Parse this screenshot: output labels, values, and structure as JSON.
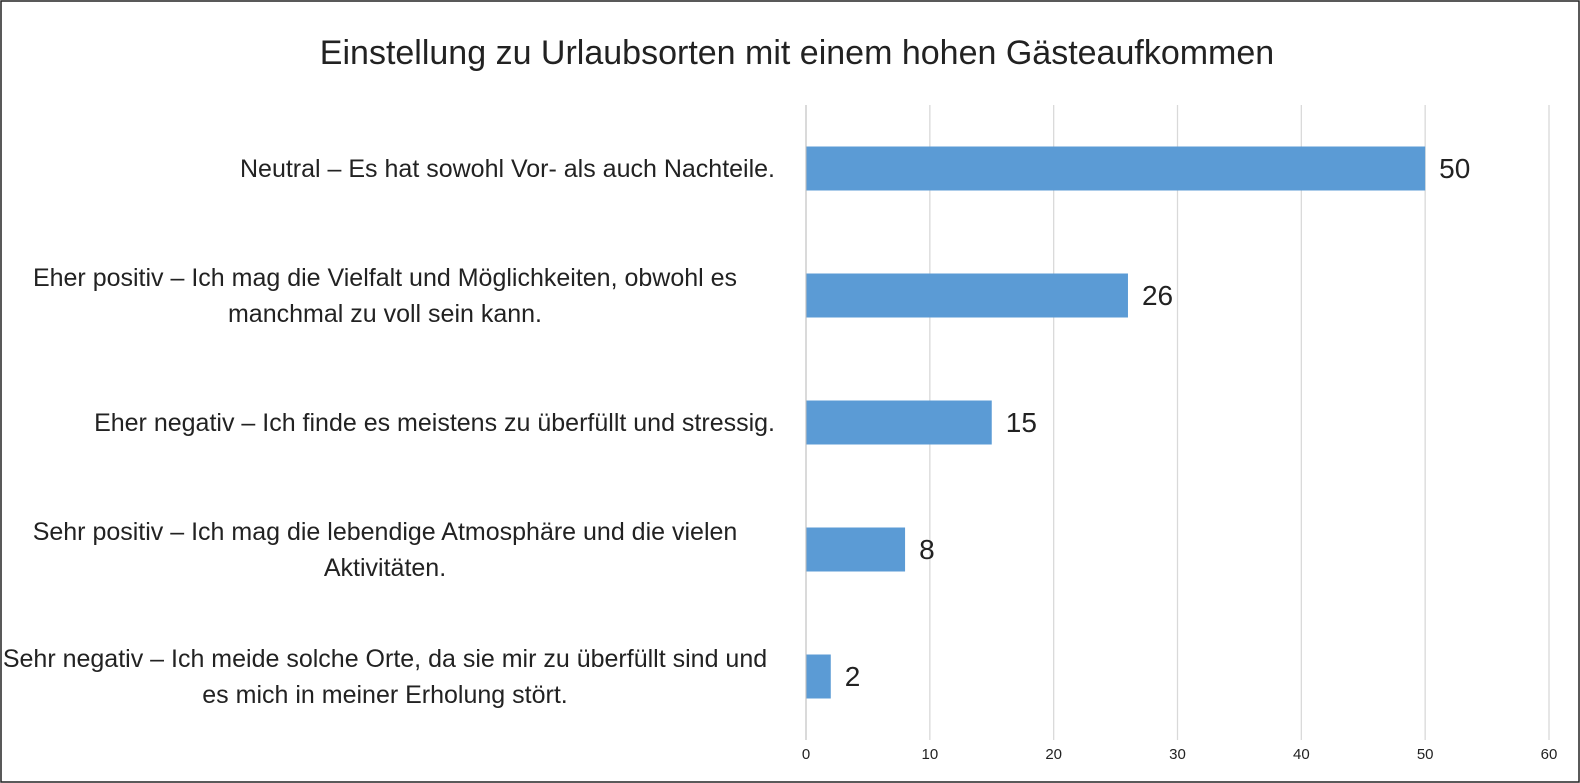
{
  "chart_data": {
    "type": "bar",
    "orientation": "horizontal",
    "title": "Einstellung zu Urlaubsorten mit einem hohen Gästeaufkommen",
    "categories": [
      "Neutral – Es hat sowohl Vor- als auch Nachteile.",
      "Eher positiv – Ich mag die Vielfalt und Möglichkeiten, obwohl es manchmal zu voll sein kann.",
      "Eher negativ – Ich finde es meistens zu überfüllt und stressig.",
      "Sehr positiv – Ich mag die lebendige Atmosphäre und die vielen Aktivitäten.",
      "Sehr negativ – Ich meide solche Orte, da sie mir zu überfüllt sind und es mich in meiner Erholung stört."
    ],
    "values": [
      50,
      26,
      15,
      8,
      2
    ],
    "color": "#5b9bd5",
    "xlim": [
      0,
      60
    ],
    "xticks": [
      0,
      10,
      20,
      30,
      40,
      50,
      60
    ],
    "grid": true
  }
}
